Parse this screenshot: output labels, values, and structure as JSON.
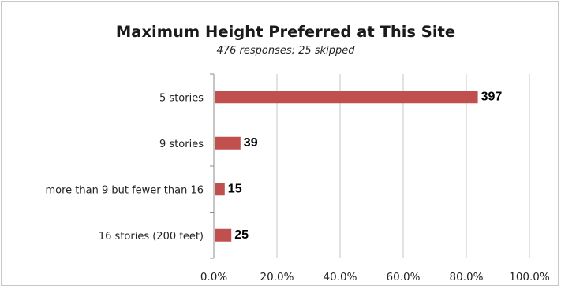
{
  "chart_data": {
    "type": "bar",
    "orientation": "horizontal",
    "title": "Maximum Height Preferred at This Site",
    "subtitle": "476 responses; 25 skipped",
    "categories": [
      "5 stories",
      "9 stories",
      "more than 9 but fewer than 16",
      "16 stories (200 feet)"
    ],
    "series": [
      {
        "percent": [
          83.4,
          8.2,
          3.2,
          5.3
        ],
        "counts": [
          397,
          39,
          15,
          25
        ],
        "data_labels": [
          "397",
          "39",
          "15",
          "25"
        ],
        "color": "#c0504d"
      }
    ],
    "xlim": [
      0,
      100
    ],
    "x_ticks": [
      "0.0%",
      "20.0%",
      "40.0%",
      "60.0%",
      "80.0%",
      "100.0%"
    ],
    "grid": "vertical-on",
    "legend": "none"
  }
}
